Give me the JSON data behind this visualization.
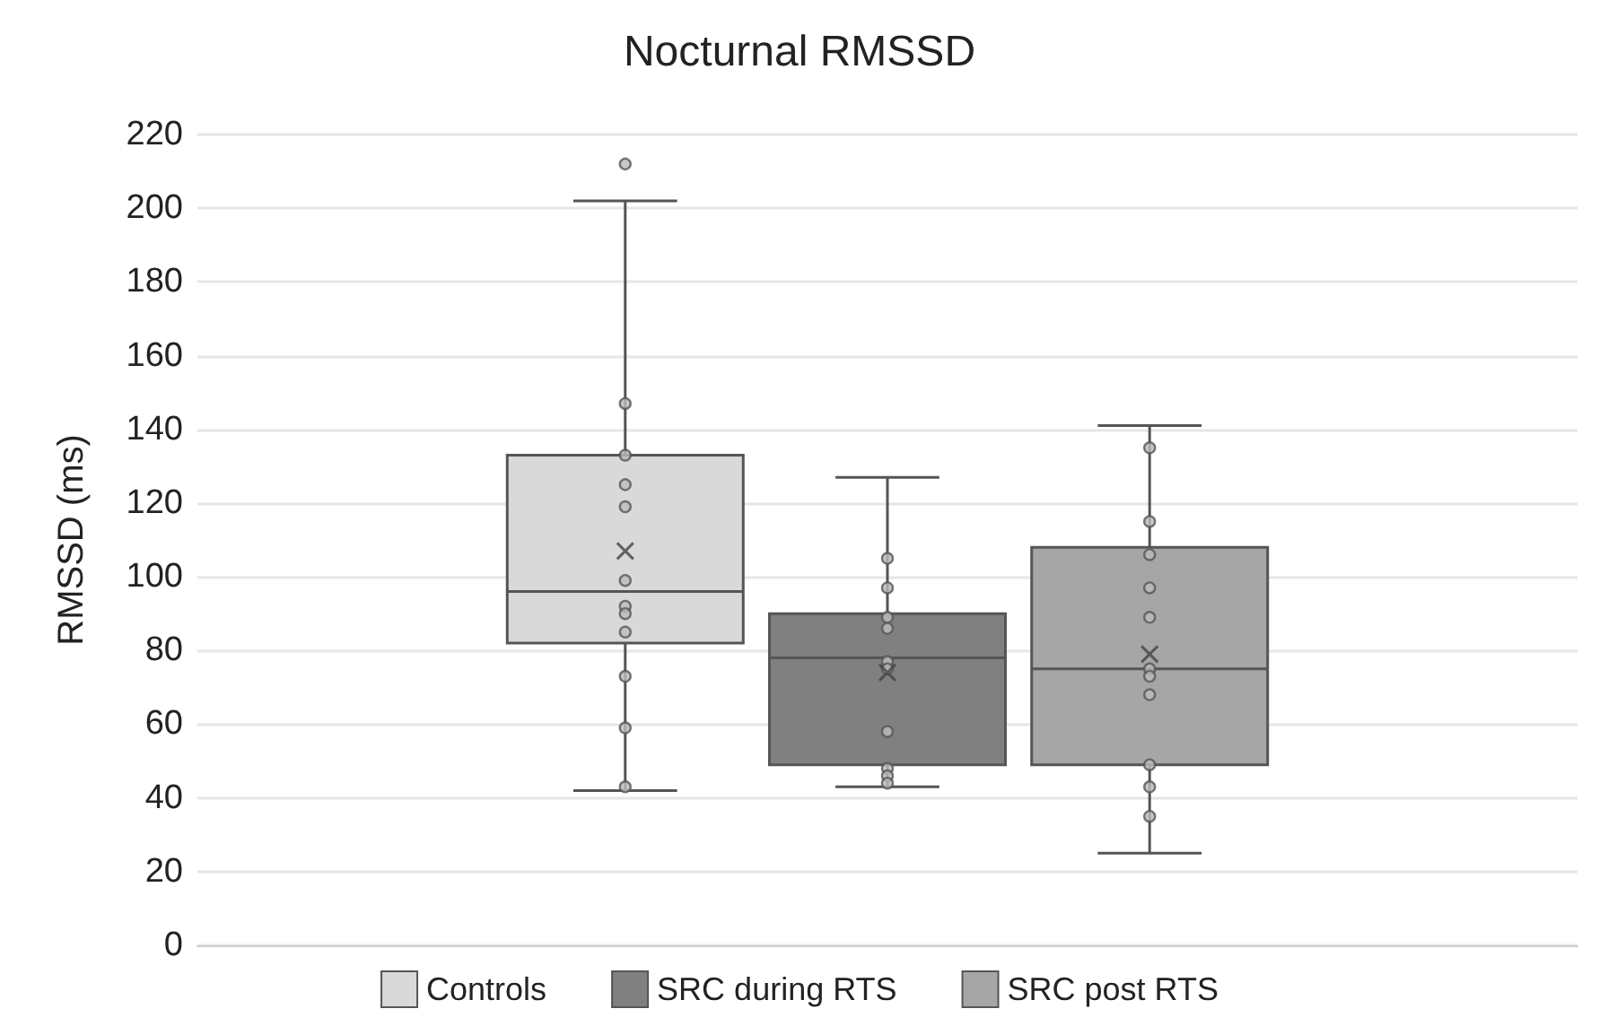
{
  "chart_data": {
    "type": "box",
    "title": "Nocturnal RMSSD",
    "ylabel": "RMSSD (ms)",
    "categories": [
      null
    ],
    "ylim": [
      0,
      220
    ],
    "yticks": [
      0,
      20,
      40,
      60,
      80,
      100,
      120,
      140,
      160,
      180,
      200,
      220
    ],
    "grid": "y",
    "legend": "bottom",
    "tick_labels": "y",
    "series": [
      {
        "name": "Controls",
        "color": "#d9d9d9",
        "boxes": [
          {
            "low": 42,
            "q1": 82,
            "median": 96,
            "q3": 133,
            "high": 202,
            "mean": 107,
            "outliers": [
              212,
              147,
              133,
              125,
              119,
              99,
              92,
              90,
              85,
              73,
              59,
              43
            ]
          }
        ]
      },
      {
        "name": "SRC during RTS",
        "color": "#808080",
        "boxes": [
          {
            "low": 43,
            "q1": 49,
            "median": 78,
            "q3": 90,
            "high": 127,
            "mean": 74,
            "outliers": [
              105,
              97,
              89,
              86,
              77,
              75,
              58,
              48,
              46,
              44
            ]
          }
        ]
      },
      {
        "name": "SRC post RTS",
        "color": "#a6a6a6",
        "boxes": [
          {
            "low": 25,
            "q1": 49,
            "median": 75,
            "q3": 108,
            "high": 141,
            "mean": 79,
            "outliers": [
              135,
              115,
              106,
              97,
              89,
              75,
              73,
              68,
              49,
              43,
              35
            ]
          }
        ]
      }
    ]
  }
}
